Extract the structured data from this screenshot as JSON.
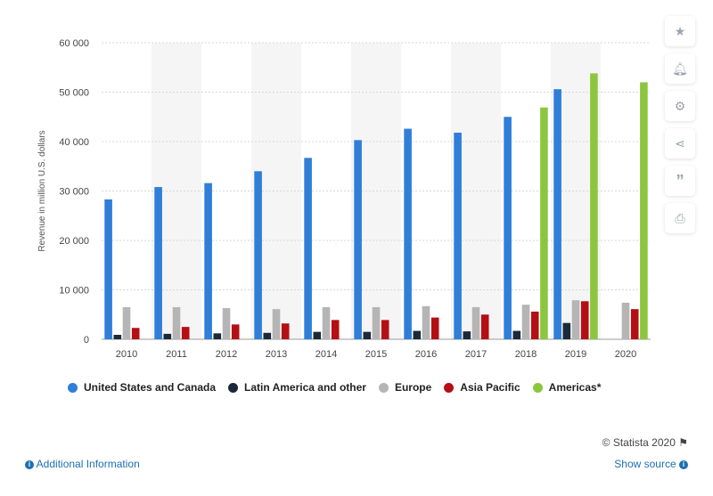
{
  "chart_data": {
    "type": "bar",
    "categories": [
      "2010",
      "2011",
      "2012",
      "2013",
      "2014",
      "2015",
      "2016",
      "2017",
      "2018",
      "2019",
      "2020"
    ],
    "ylabel": "Revenue in million U.S. dollars",
    "ylim": [
      0,
      60000
    ],
    "yticks": [
      0,
      10000,
      20000,
      30000,
      40000,
      50000,
      60000
    ],
    "ytick_labels": [
      "0",
      "10 000",
      "20 000",
      "30 000",
      "40 000",
      "50 000",
      "60 000"
    ],
    "grid": true,
    "legend_position": "bottom",
    "series": [
      {
        "name": "United States and Canada",
        "color": "#2f7ed8",
        "values": [
          28300,
          30800,
          31600,
          34000,
          36700,
          40300,
          42600,
          41800,
          45000,
          50600,
          null
        ]
      },
      {
        "name": "Latin America and other",
        "color": "#1b2a3a",
        "values": [
          900,
          1100,
          1200,
          1300,
          1500,
          1500,
          1700,
          1600,
          1700,
          3300,
          null
        ]
      },
      {
        "name": "Europe",
        "color": "#b5b5b5",
        "values": [
          6500,
          6500,
          6300,
          6100,
          6500,
          6500,
          6700,
          6500,
          7000,
          7900,
          7400
        ]
      },
      {
        "name": "Asia Pacific",
        "color": "#b40f14",
        "values": [
          2300,
          2500,
          3000,
          3200,
          3900,
          3900,
          4400,
          5000,
          5600,
          7700,
          6100
        ]
      },
      {
        "name": "Americas*",
        "color": "#8cc63f",
        "values": [
          null,
          null,
          null,
          null,
          null,
          null,
          null,
          null,
          46900,
          53800,
          52000
        ]
      }
    ]
  },
  "toolbar": {
    "icons": [
      "star-icon",
      "bell-icon",
      "gear-icon",
      "share-icon",
      "quote-icon",
      "print-icon"
    ]
  },
  "footer": {
    "copyright": "© Statista 2020",
    "additional_info": "Additional Information",
    "show_source": "Show source"
  }
}
